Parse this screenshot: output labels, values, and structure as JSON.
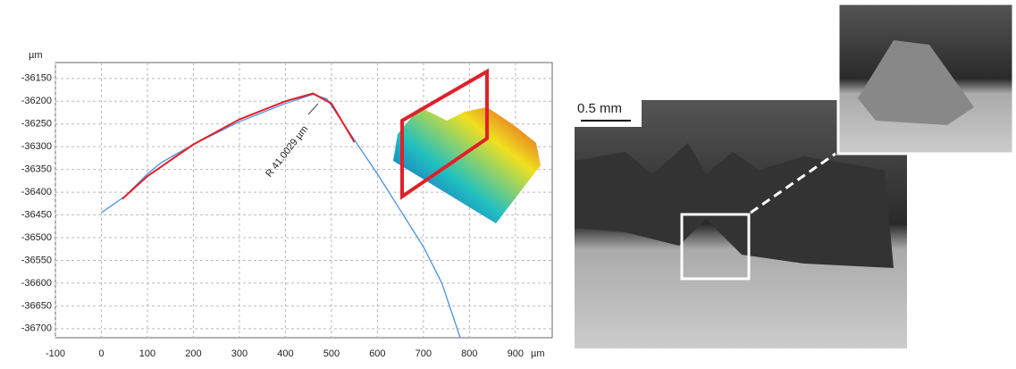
{
  "chart_data": {
    "type": "line",
    "y_unit": "µm",
    "x_unit": "µm",
    "annotation": "R 41.0029 µm",
    "xlim": [
      -100,
      980
    ],
    "ylim": [
      -36720,
      -36115
    ],
    "xticks": [
      -100,
      0,
      100,
      200,
      300,
      400,
      500,
      600,
      700,
      800,
      900
    ],
    "yticks": [
      -36150,
      -36200,
      -36250,
      -36300,
      -36350,
      -36400,
      -36450,
      -36500,
      -36550,
      -36600,
      -36650,
      -36700
    ],
    "grid": true,
    "series": [
      {
        "color": "#4a90e2",
        "x": [
          0,
          50,
          100,
          130,
          200,
          300,
          400,
          460,
          490,
          520,
          560,
          600,
          650,
          700,
          740,
          780
        ],
        "values": [
          -36445,
          -36410,
          -36360,
          -36335,
          -36295,
          -36245,
          -36205,
          -36185,
          -36195,
          -36240,
          -36300,
          -36360,
          -36440,
          -36520,
          -36600,
          -36720
        ]
      },
      {
        "color": "#e0202a",
        "x": [
          45,
          100,
          200,
          300,
          400,
          460,
          500,
          550
        ],
        "values": [
          -36415,
          -36365,
          -36295,
          -36240,
          -36200,
          -36183,
          -36205,
          -36290
        ]
      }
    ]
  },
  "photo": {
    "scale_label": "0.5 mm"
  }
}
